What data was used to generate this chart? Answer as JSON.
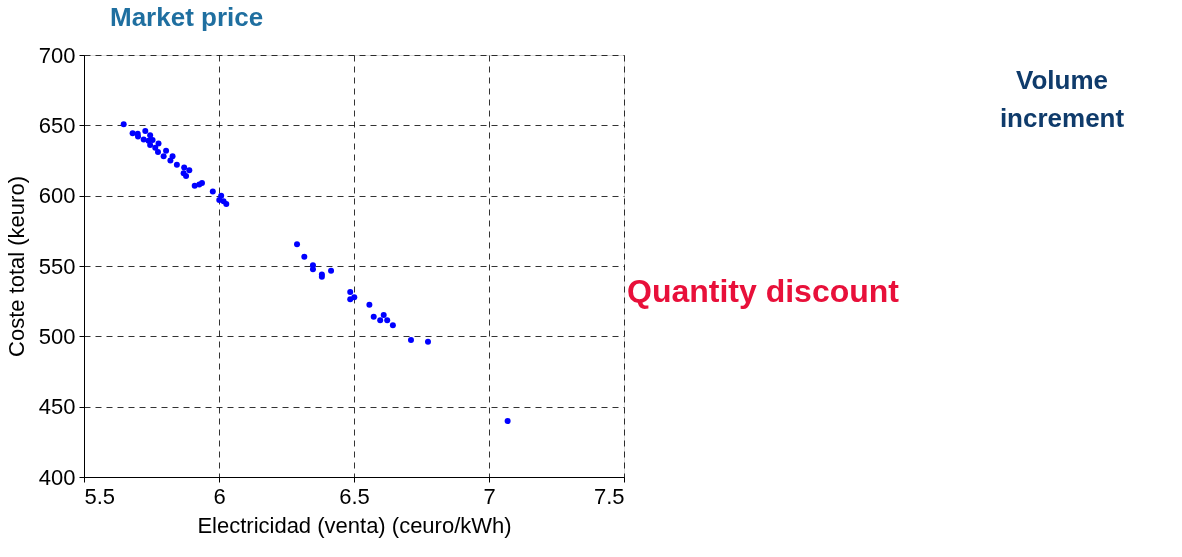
{
  "chart_data": {
    "type": "scatter",
    "xlabel": "Electricidad (venta) (ceuro/kWh)",
    "ylabel": "Coste total (keuro)",
    "annotations": [
      "Market price",
      "Volume increment",
      "Quantity discount"
    ],
    "x": [
      5.647,
      5.68,
      5.699,
      5.727,
      5.7,
      5.721,
      5.745,
      5.739,
      5.754,
      5.745,
      5.776,
      5.764,
      5.774,
      5.804,
      5.795,
      5.828,
      5.82,
      5.844,
      5.871,
      5.89,
      5.869,
      5.878,
      5.91,
      5.927,
      5.937,
      5.977,
      6.008,
      6.001,
      6.017,
      6.027,
      6.289,
      6.316,
      6.348,
      6.348,
      6.381,
      6.381,
      6.415,
      6.486,
      6.486,
      6.501,
      6.557,
      6.573,
      6.61,
      6.597,
      6.623,
      6.644,
      6.711,
      6.774,
      7.069
    ],
    "series": [
      {
        "color": "#0000ff",
        "values": [
          650.7,
          644.3,
          644,
          646,
          642,
          640,
          643,
          639,
          639.6,
          636,
          637,
          634,
          631,
          632,
          628,
          628,
          625,
          622,
          620,
          618,
          616,
          614,
          607,
          608,
          609,
          603,
          600,
          597,
          596,
          594,
          565.4,
          556.6,
          550.5,
          547.7,
          544,
          542.4,
          546.7,
          531.5,
          526.3,
          527.8,
          522.5,
          514,
          515.2,
          511.4,
          511.4,
          507.8,
          497.4,
          496.2,
          439.8
        ]
      }
    ],
    "xlim": [
      5.5,
      7.5
    ],
    "xticks": [
      5.5,
      6,
      6.5,
      7,
      7.5
    ],
    "ylim": [
      400,
      700
    ],
    "yticks": [
      400,
      450,
      500,
      550,
      600,
      650,
      700
    ],
    "grid": true,
    "marker": "circle"
  }
}
